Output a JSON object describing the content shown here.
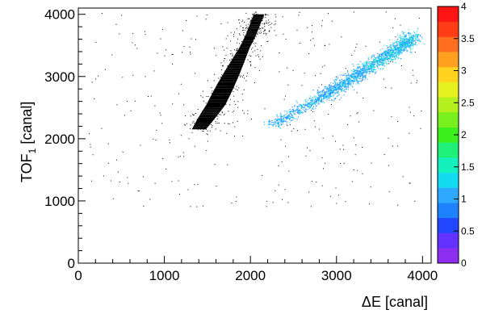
{
  "chart_data": {
    "type": "heatmap",
    "title": "",
    "xlabel": "ΔE [canal]",
    "ylabel_main": "TOF",
    "ylabel_sub": "1",
    "ylabel_unit": " [canal]",
    "xlim": [
      0,
      4100
    ],
    "ylim": [
      0,
      4100
    ],
    "x_ticks": [
      0,
      1000,
      2000,
      3000,
      4000
    ],
    "x_tick_labels": [
      "0",
      "1000",
      "2000",
      "3000",
      "4000"
    ],
    "y_ticks": [
      0,
      1000,
      2000,
      3000,
      4000
    ],
    "y_tick_labels": [
      "0",
      "1000",
      "2000",
      "3000",
      "4000"
    ],
    "z_range": [
      0,
      4
    ],
    "palette_ticks": [
      0,
      0.5,
      1,
      1.5,
      2,
      2.5,
      3,
      3.5,
      4
    ],
    "palette_tick_labels": [
      "0",
      "0.5",
      "1",
      "1.5",
      "2",
      "2.5",
      "3",
      "3.5",
      "4"
    ],
    "palette_colors": [
      "#8c2df0",
      "#6432ff",
      "#2346ff",
      "#1e82ff",
      "#2daaff",
      "#14dcf0",
      "#14f0be",
      "#1ef078",
      "#3cf01e",
      "#78f01e",
      "#b4f01e",
      "#e6f01e",
      "#ffd21e",
      "#ffa01e",
      "#ff6e1e",
      "#ff3c14",
      "#ff1414"
    ],
    "grid": false,
    "legend": "palette-right",
    "regions": [
      {
        "name": "dense-band",
        "color": "#000000",
        "description_points": [
          [
            1400,
            2150
          ],
          [
            1600,
            2550
          ],
          [
            1800,
            3100
          ],
          [
            2000,
            3650
          ],
          [
            2100,
            4000
          ]
        ],
        "width_x": 220
      },
      {
        "name": "diagonal-band",
        "color": "#2daaff",
        "description_points": [
          [
            2200,
            2200
          ],
          [
            2800,
            2650
          ],
          [
            3200,
            3000
          ],
          [
            3600,
            3350
          ],
          [
            3900,
            3650
          ]
        ],
        "width_y": 120
      }
    ]
  }
}
